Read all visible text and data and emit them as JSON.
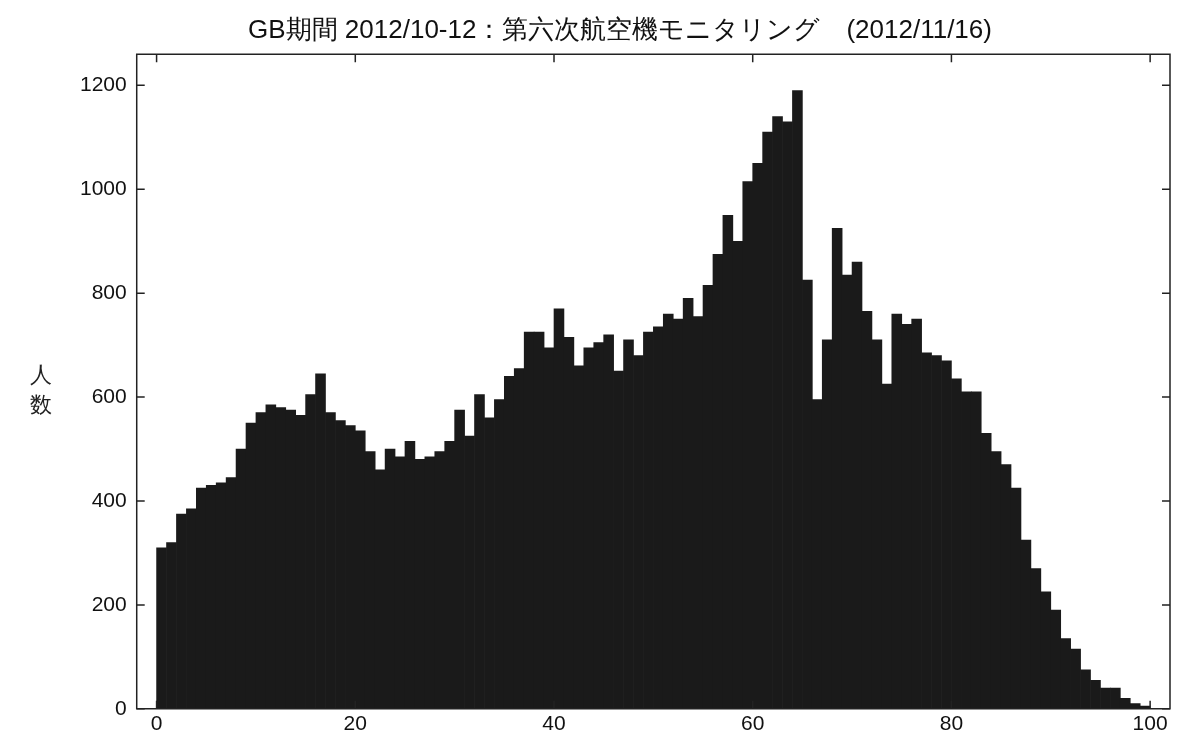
{
  "chart_data": {
    "type": "histogram",
    "title": "GB期間 2012/10-12：第六次航空機モニタリング　(2012/11/16)",
    "ylabel": "人数",
    "bins": [
      0,
      1,
      2,
      3,
      4,
      5,
      6,
      7,
      8,
      9,
      10,
      11,
      12,
      13,
      14,
      15,
      16,
      17,
      18,
      19,
      20,
      21,
      22,
      23,
      24,
      25,
      26,
      27,
      28,
      29,
      30,
      31,
      32,
      33,
      34,
      35,
      36,
      37,
      38,
      39,
      40,
      41,
      42,
      43,
      44,
      45,
      46,
      47,
      48,
      49,
      50,
      51,
      52,
      53,
      54,
      55,
      56,
      57,
      58,
      59,
      60,
      61,
      62,
      63,
      64,
      65,
      66,
      67,
      68,
      69,
      70,
      71,
      72,
      73,
      74,
      75,
      76,
      77,
      78,
      79,
      80,
      81,
      82,
      83,
      84,
      85,
      86,
      87,
      88,
      89,
      90,
      91,
      92,
      93,
      94,
      95,
      96,
      97,
      98,
      99,
      100
    ],
    "values": [
      310,
      320,
      375,
      385,
      425,
      430,
      435,
      445,
      500,
      550,
      570,
      585,
      580,
      575,
      565,
      605,
      645,
      570,
      555,
      545,
      535,
      495,
      460,
      500,
      485,
      515,
      480,
      485,
      495,
      515,
      575,
      525,
      605,
      560,
      595,
      640,
      655,
      725,
      725,
      695,
      770,
      715,
      660,
      695,
      705,
      720,
      650,
      710,
      680,
      725,
      735,
      760,
      750,
      790,
      755,
      815,
      875,
      950,
      900,
      1015,
      1050,
      1110,
      1140,
      1130,
      1190,
      825,
      595,
      710,
      925,
      835,
      860,
      765,
      710,
      625,
      760,
      740,
      750,
      685,
      680,
      670,
      635,
      610,
      610,
      530,
      495,
      470,
      425,
      325,
      270,
      225,
      190,
      135,
      115,
      75,
      55,
      40,
      40,
      20,
      10,
      5
    ],
    "color": "#1a1a1a",
    "xlim": [
      -2,
      102
    ],
    "xticks": [
      0,
      20,
      40,
      60,
      80,
      100
    ],
    "ylim": [
      0,
      1260
    ],
    "yticks": [
      0,
      200,
      400,
      600,
      800,
      1000,
      1200
    ],
    "grid": false,
    "legend": false
  }
}
